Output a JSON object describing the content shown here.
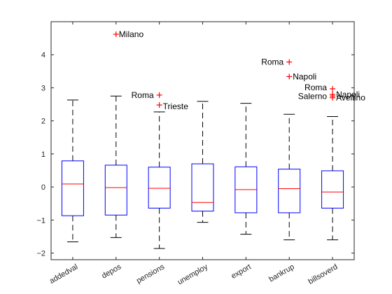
{
  "colors": {
    "box": "#0000ff",
    "median": "#ff0000",
    "whisker": "#000000",
    "outlier": "#ff0000",
    "axis": "#262626",
    "background": "#ffffff"
  },
  "chart_data": {
    "type": "boxplot",
    "title": "",
    "xlabel": "",
    "ylabel": "",
    "ylim": [
      -2.2,
      5.0
    ],
    "yticks": [
      -2,
      -1,
      0,
      1,
      2,
      3,
      4
    ],
    "grid": false,
    "categories": [
      "addedval",
      "depos",
      "pensions",
      "unemploy",
      "export",
      "bankrup",
      "billsoverd"
    ],
    "boxes": [
      {
        "category": "addedval",
        "whisker_low": -1.66,
        "q1": -0.87,
        "median": 0.09,
        "q3": 0.79,
        "whisker_high": 2.63,
        "outliers": []
      },
      {
        "category": "depos",
        "whisker_low": -1.53,
        "q1": -0.85,
        "median": -0.02,
        "q3": 0.66,
        "whisker_high": 2.75,
        "outliers": [
          {
            "label": "Milano",
            "value": 4.62
          }
        ]
      },
      {
        "category": "pensions",
        "whisker_low": -1.86,
        "q1": -0.64,
        "median": -0.04,
        "q3": 0.6,
        "whisker_high": 2.27,
        "outliers": [
          {
            "label": "Roma",
            "value": 2.78
          },
          {
            "label": "Trieste",
            "value": 2.48
          }
        ]
      },
      {
        "category": "unemploy",
        "whisker_low": -1.07,
        "q1": -0.73,
        "median": -0.47,
        "q3": 0.7,
        "whisker_high": 2.59,
        "outliers": []
      },
      {
        "category": "export",
        "whisker_low": -1.43,
        "q1": -0.78,
        "median": -0.08,
        "q3": 0.61,
        "whisker_high": 2.53,
        "outliers": []
      },
      {
        "category": "bankrup",
        "whisker_low": -1.6,
        "q1": -0.78,
        "median": -0.05,
        "q3": 0.54,
        "whisker_high": 2.2,
        "outliers": [
          {
            "label": "Roma",
            "value": 3.78
          },
          {
            "label": "Napoli",
            "value": 3.34
          }
        ]
      },
      {
        "category": "billsoverd",
        "whisker_low": -1.6,
        "q1": -0.64,
        "median": -0.15,
        "q3": 0.49,
        "whisker_high": 2.13,
        "outliers": [
          {
            "label": "Roma",
            "value": 2.97
          },
          {
            "label": "Napoli",
            "value": 2.8
          },
          {
            "label": "Salerno",
            "value": 2.75
          },
          {
            "label": "Avellino",
            "value": 2.7
          }
        ]
      }
    ]
  }
}
